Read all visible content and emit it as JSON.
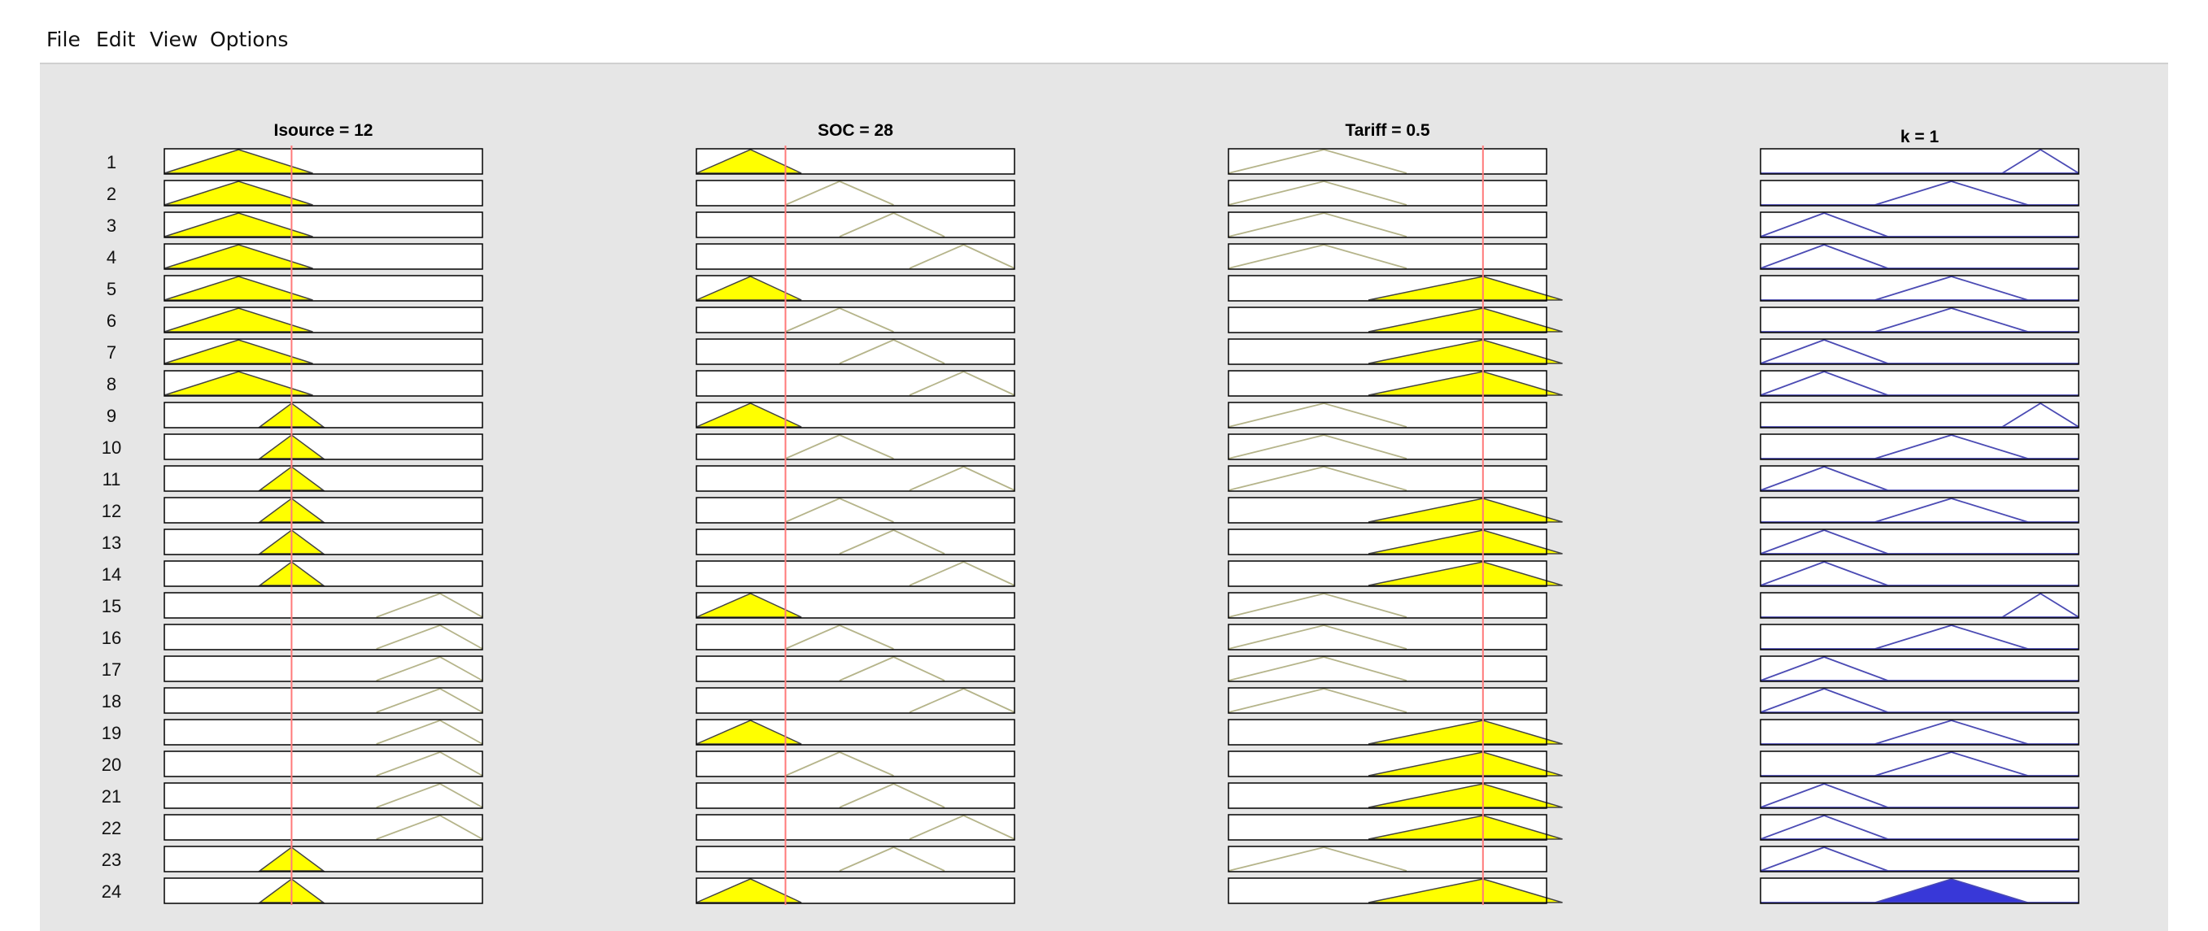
{
  "menu": {
    "items": [
      "File",
      "Edit",
      "View",
      "Options"
    ]
  },
  "rule_viewer": {
    "rule_numbers": [
      "1",
      "2",
      "3",
      "4",
      "5",
      "6",
      "7",
      "8",
      "9",
      "10",
      "11",
      "12",
      "13",
      "14",
      "15",
      "16",
      "17",
      "18",
      "19",
      "20",
      "21",
      "22",
      "23",
      "24"
    ],
    "columns": [
      {
        "id": "isource",
        "title": "Isource = 12",
        "kind": "input",
        "input_value": 12,
        "range": [
          0,
          30
        ],
        "mfs": {
          "low": [
            0,
            7,
            14
          ],
          "mid": [
            9,
            12,
            15
          ],
          "high": [
            20,
            26,
            30
          ]
        },
        "rules": [
          "low",
          "low",
          "low",
          "low",
          "low",
          "low",
          "low",
          "low",
          "mid",
          "mid",
          "mid",
          "mid",
          "mid",
          "mid",
          "high",
          "high",
          "high",
          "high",
          "high",
          "high",
          "high",
          "high",
          "mid",
          "mid"
        ]
      },
      {
        "id": "soc",
        "title": "SOC = 28",
        "kind": "input",
        "input_value": 28,
        "range": [
          0,
          100
        ],
        "mfs": {
          "low": [
            0,
            17,
            33
          ],
          "mid": [
            28,
            45,
            62
          ],
          "high": [
            45,
            62,
            78
          ],
          "full": [
            67,
            84,
            100
          ]
        },
        "rules": [
          "low",
          "mid",
          "high",
          "full",
          "low",
          "mid",
          "high",
          "full",
          "low",
          "mid",
          "full",
          "mid",
          "high",
          "full",
          "low",
          "mid",
          "high",
          "full",
          "low",
          "mid",
          "high",
          "full",
          "high",
          "low"
        ]
      },
      {
        "id": "tariff",
        "title": "Tariff = 0.5",
        "kind": "input",
        "input_value": 0.5,
        "range": [
          -0.3,
          0.7
        ],
        "mfs": {
          "low": [
            -0.3,
            0,
            0.26
          ],
          "high": [
            0.14,
            0.5,
            0.75
          ]
        },
        "rules": [
          "low",
          "low",
          "low",
          "low",
          "high",
          "high",
          "high",
          "high",
          "low",
          "low",
          "low",
          "high",
          "high",
          "high",
          "low",
          "low",
          "low",
          "low",
          "high",
          "high",
          "high",
          "high",
          "low",
          "high"
        ]
      },
      {
        "id": "k",
        "title": "k = 1",
        "kind": "output",
        "range": [
          0,
          2.5
        ],
        "mfs": {
          "a": [
            0,
            0.5,
            1
          ],
          "b": [
            0.9,
            1.5,
            2.1
          ],
          "c": [
            1.9,
            2.2,
            2.5
          ]
        },
        "rules": [
          "c",
          "b",
          "a",
          "a",
          "b",
          "b",
          "a",
          "a",
          "c",
          "b",
          "a",
          "b",
          "a",
          "a",
          "c",
          "b",
          "a",
          "a",
          "b",
          "b",
          "a",
          "a",
          "a",
          "b"
        ],
        "aggregate": {
          "mf": [
            0.9,
            1.5,
            2.1
          ]
        }
      }
    ],
    "colors": {
      "fill_active": "#ffff00",
      "input_mf_line": "#b5b48a",
      "output_mf_line": "#4b4bb4",
      "output_fill": "#3838d8",
      "value_line": "#ff7a7a"
    }
  }
}
